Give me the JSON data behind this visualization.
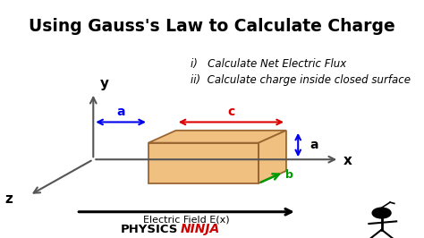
{
  "title": "Using Gauss's Law to Calculate Charge",
  "title_bg": "#FFFF00",
  "title_color": "#000000",
  "body_bg": "#FFFFFF",
  "item1": "i)   Calculate Net Electric Flux",
  "item2": "ii)  Calculate charge inside closed surface",
  "box_face_color": "#F0C080",
  "box_edge_color": "#996633",
  "axis_color": "#555555",
  "arrow_blue": "#0000EE",
  "arrow_red": "#DD0000",
  "arrow_green": "#009900",
  "label_a_blue": "a",
  "label_c_red": "c",
  "label_a_right": "a",
  "label_b_green": "b",
  "label_x": "x",
  "label_y": "y",
  "label_z": "z",
  "label_efield": "Electric Field E(x)",
  "physics_text": "PHYSICS",
  "ninja_text": "NINJA",
  "physics_color": "#000000",
  "ninja_color": "#CC0000",
  "title_fontsize": 13.5,
  "item_fontsize": 8.5,
  "label_fontsize": 10,
  "brand_fontsize": 9.5
}
